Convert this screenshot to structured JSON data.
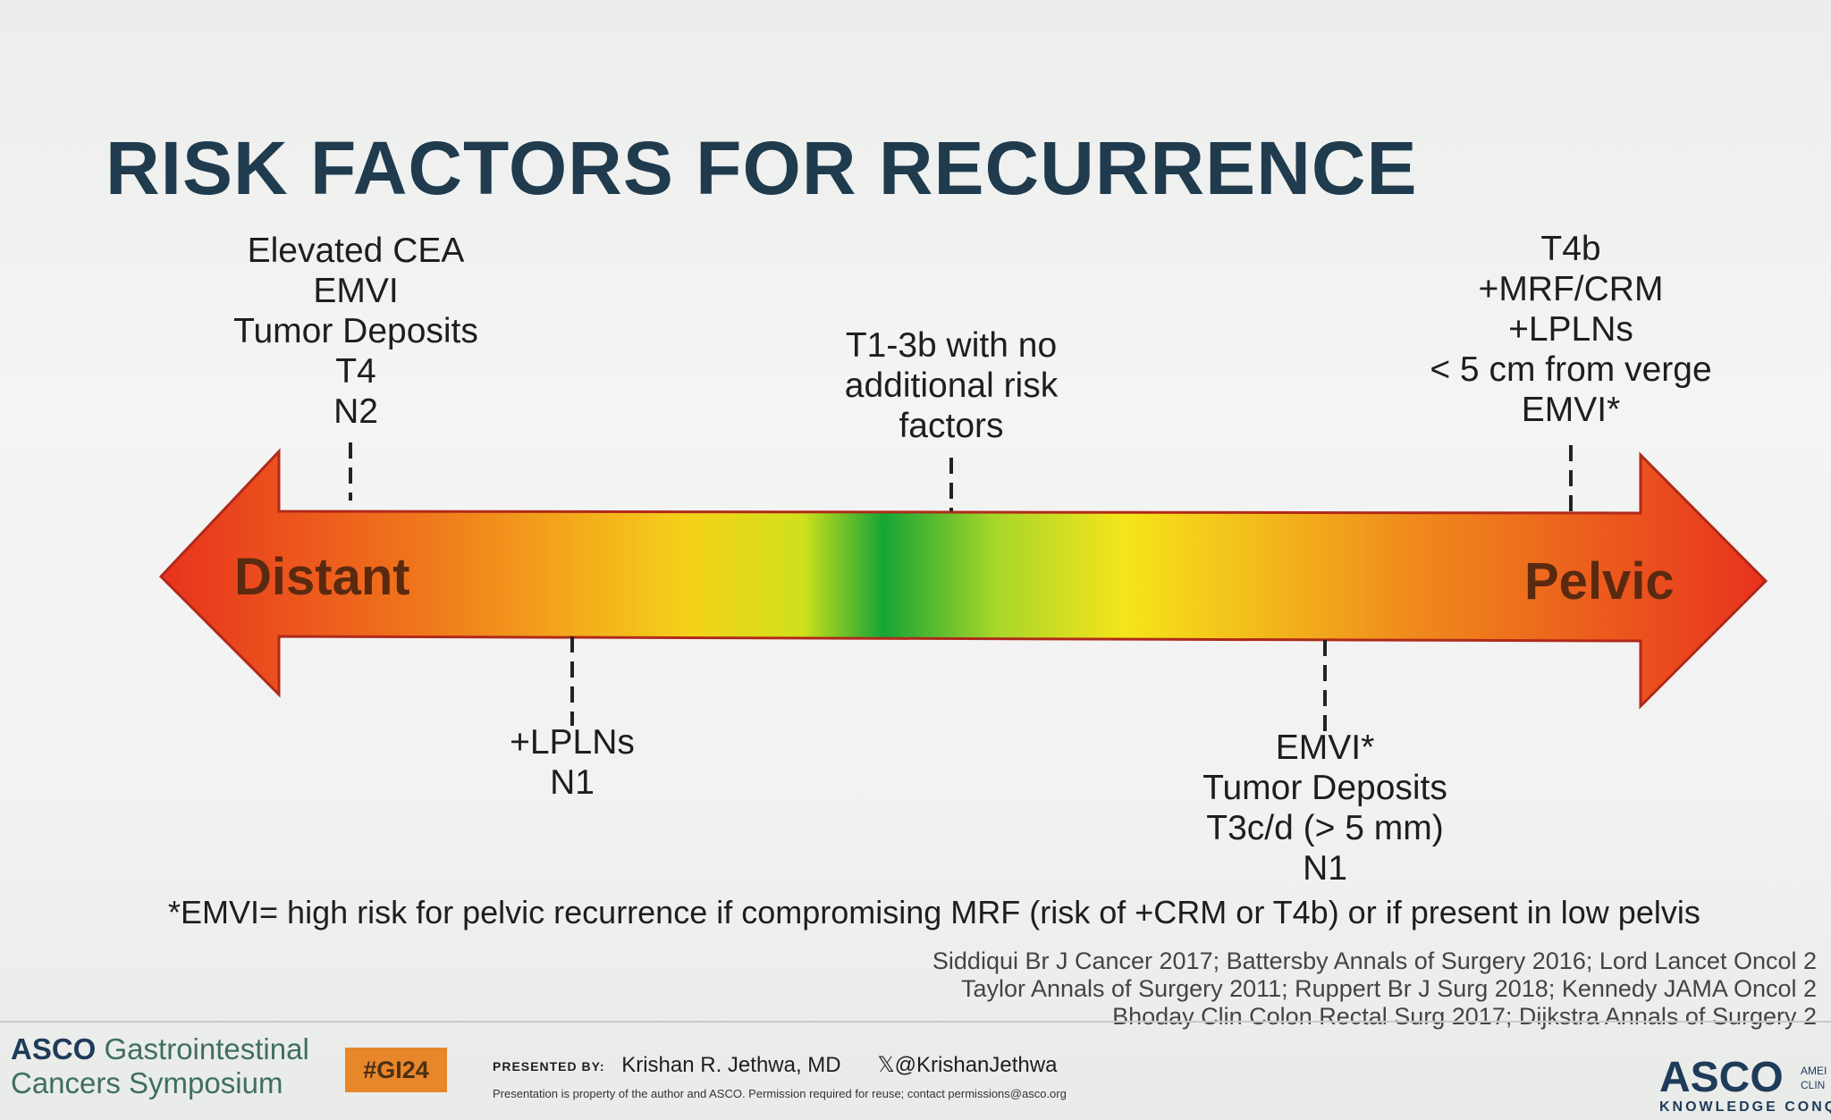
{
  "title": "RISK FACTORS FOR RECURRENCE",
  "arrow": {
    "left_label": "Distant",
    "right_label": "Pelvic",
    "colors": [
      "#e8321e",
      "#f07a1c",
      "#f5d21a",
      "#e3e51c",
      "#15a435"
    ]
  },
  "top_left": [
    "Elevated CEA",
    "EMVI",
    "Tumor Deposits",
    "T4",
    "N2"
  ],
  "top_center": [
    "T1-3b with no",
    "additional risk",
    "factors"
  ],
  "top_right": [
    "T4b",
    "+MRF/CRM",
    "+LPLNs",
    "< 5 cm from verge",
    "EMVI*"
  ],
  "bottom_left": [
    "+LPLNs",
    "N1"
  ],
  "bottom_right": [
    "EMVI*",
    "Tumor Deposits",
    "T3c/d (> 5 mm)",
    "N1"
  ],
  "footnote": "*EMVI= high risk for pelvic recurrence if compromising MRF (risk of +CRM or T4b) or if present in low pelvis",
  "references": [
    "Siddiqui Br J Cancer 2017; Battersby Annals of Surgery 2016; Lord Lancet Oncol 2",
    "Taylor Annals of Surgery 2011; Ruppert Br J Surg 2018; Kennedy JAMA Oncol 2",
    "Bhoday Clin Colon Rectal Surg 2017; Dijkstra Annals of Surgery 2"
  ],
  "footer": {
    "brand": "ASCO",
    "event_line1": "Gastrointestinal",
    "event_line2": "Cancers Symposium",
    "hashtag": "#GI24",
    "presented_label": "PRESENTED BY:",
    "presenter": "Krishan R. Jethwa, MD",
    "handle": "𝕏@KrishanJethwa",
    "legal": "Presentation is property of the author and ASCO. Permission required for reuse; contact permissions@asco.org",
    "logo": "ASCO",
    "logo_tagline": "KNOWLEDGE CONQU",
    "logo_side_1": "AMEI",
    "logo_side_2": "CLIN"
  }
}
